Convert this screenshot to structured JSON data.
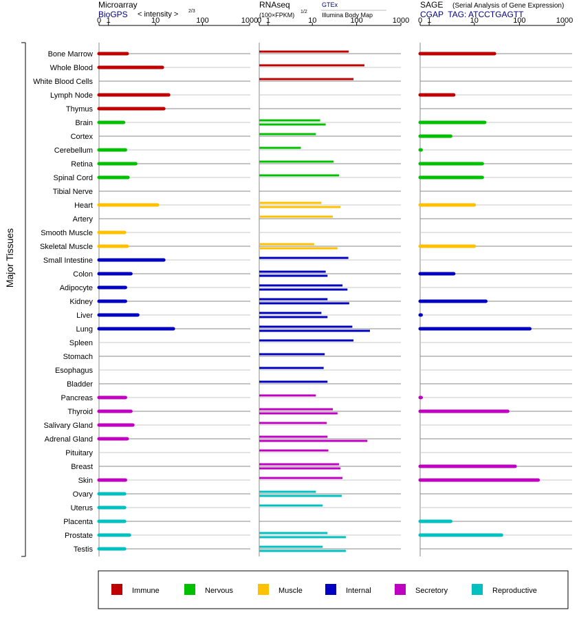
{
  "figure": {
    "side_label": "Major Tissues"
  },
  "panels": [
    {
      "id": "microarray",
      "title": "Microarray",
      "subtitle": "BioGPS",
      "note": "< intensity >",
      "note_exponent": "2/3",
      "ticks": [
        "0",
        "1",
        "10",
        "100",
        "1000"
      ]
    },
    {
      "id": "rnaseq",
      "title": "RNAseq",
      "title_suffix": "(100×FPKM)",
      "title_exponent": "1/2",
      "note": "GTEx",
      "note2": "Illumina Body Map",
      "ticks": [
        "0",
        "1",
        "10",
        "100",
        "1000"
      ]
    },
    {
      "id": "sage",
      "title": "SAGE",
      "note": "(Serial Analysis of Gene Expression)",
      "subtitle": "CGAP  TAG: ATCCTGAGTT",
      "ticks": [
        "0",
        "1",
        "10",
        "100",
        "1000"
      ]
    }
  ],
  "colors": {
    "Immune": "#c00000",
    "Nervous": "#00c000",
    "Muscle": "#ffc000",
    "Internal": "#0000c0",
    "Secretory": "#c000c0",
    "Reproductive": "#00c0c0",
    "subtitle_blue": "#000080"
  },
  "legend": [
    "Immune",
    "Nervous",
    "Muscle",
    "Internal",
    "Secretory",
    "Reproductive"
  ],
  "chart_data": {
    "type": "bar",
    "orientation": "horizontal",
    "x_scale": "log (0, 1, 10, 100, 1000)",
    "xlim": [
      0,
      1000
    ],
    "categories": [
      "Bone Marrow",
      "Whole Blood",
      "White Blood Cells",
      "Lymph Node",
      "Thymus",
      "Brain",
      "Cortex",
      "Cerebellum",
      "Retina",
      "Spinal Cord",
      "Tibial Nerve",
      "Heart",
      "Artery",
      "Smooth Muscle",
      "Skeletal Muscle",
      "Small Intestine",
      "Colon",
      "Adipocyte",
      "Kidney",
      "Liver",
      "Lung",
      "Spleen",
      "Stomach",
      "Esophagus",
      "Bladder",
      "Pancreas",
      "Thyroid",
      "Salivary Gland",
      "Adrenal Gland",
      "Pituitary",
      "Breast",
      "Skin",
      "Ovary",
      "Uterus",
      "Placenta",
      "Prostate",
      "Testis"
    ],
    "groups": [
      "Immune",
      "Immune",
      "Immune",
      "Immune",
      "Immune",
      "Nervous",
      "Nervous",
      "Nervous",
      "Nervous",
      "Nervous",
      "Nervous",
      "Muscle",
      "Muscle",
      "Muscle",
      "Muscle",
      "Internal",
      "Internal",
      "Internal",
      "Internal",
      "Internal",
      "Internal",
      "Internal",
      "Internal",
      "Internal",
      "Internal",
      "Secretory",
      "Secretory",
      "Secretory",
      "Secretory",
      "Secretory",
      "Secretory",
      "Secretory",
      "Reproductive",
      "Reproductive",
      "Reproductive",
      "Reproductive",
      "Reproductive"
    ],
    "series": [
      {
        "name": "Microarray",
        "values": [
          2.5,
          14,
          null,
          19,
          15,
          2.1,
          null,
          2.3,
          3.8,
          2.6,
          null,
          11,
          null,
          2.2,
          2.5,
          15,
          3,
          2.3,
          2.3,
          4.2,
          24,
          null,
          null,
          null,
          null,
          2.3,
          3,
          3.3,
          2.5,
          null,
          null,
          2.3,
          2.2,
          2.2,
          2.2,
          2.8,
          2.2
        ]
      },
      {
        "name": "RNAseq GTEx",
        "values": [
          66,
          150,
          85,
          null,
          null,
          15,
          12,
          5.5,
          30,
          40,
          null,
          16,
          29,
          null,
          11,
          65,
          20,
          48,
          22,
          16,
          80,
          85,
          19,
          18,
          22,
          12,
          29,
          21,
          22,
          23,
          40,
          48,
          12,
          17,
          null,
          22,
          17
        ]
      },
      {
        "name": "RNAseq Illumina Body Map",
        "values": [
          null,
          null,
          null,
          null,
          null,
          20,
          null,
          null,
          null,
          null,
          null,
          43,
          null,
          null,
          37,
          null,
          22,
          62,
          68,
          22,
          200,
          null,
          null,
          null,
          null,
          null,
          37,
          null,
          175,
          null,
          43,
          null,
          46,
          null,
          null,
          57,
          57
        ]
      },
      {
        "name": "SAGE",
        "values": [
          28,
          null,
          null,
          3.5,
          null,
          17,
          3,
          0.02,
          15,
          15,
          null,
          10,
          null,
          null,
          10,
          null,
          3.5,
          null,
          18,
          0.03,
          170,
          null,
          null,
          null,
          null,
          0.02,
          55,
          null,
          null,
          null,
          80,
          260,
          null,
          null,
          3,
          40,
          null
        ]
      }
    ]
  }
}
